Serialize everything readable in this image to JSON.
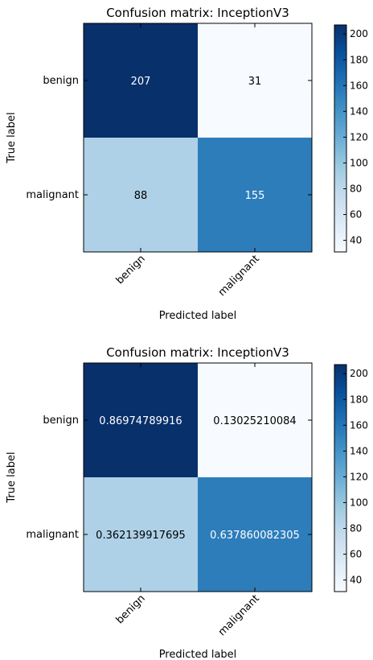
{
  "chart_data": [
    {
      "type": "heatmap",
      "title": "Confusion matrix: InceptionV3",
      "xlabel": "Predicted label",
      "ylabel": "True label",
      "x_categories": [
        "benign",
        "malignant"
      ],
      "y_categories": [
        "benign",
        "malignant"
      ],
      "values": [
        [
          207,
          31
        ],
        [
          88,
          155
        ]
      ],
      "labels": [
        [
          "207",
          "31"
        ],
        [
          "88",
          "155"
        ]
      ],
      "colorbar": {
        "min": 31,
        "max": 207,
        "ticks": [
          40,
          60,
          80,
          100,
          120,
          140,
          160,
          180,
          200
        ],
        "colormap": "Blues"
      }
    },
    {
      "type": "heatmap",
      "title": "Confusion matrix: InceptionV3",
      "xlabel": "Predicted label",
      "ylabel": "True label",
      "x_categories": [
        "benign",
        "malignant"
      ],
      "y_categories": [
        "benign",
        "malignant"
      ],
      "values": [
        [
          0.86974789916,
          0.13025210084
        ],
        [
          0.362139917695,
          0.637860082305
        ]
      ],
      "labels": [
        [
          "0.86974789916",
          "0.13025210084"
        ],
        [
          "0.362139917695",
          "0.637860082305"
        ]
      ],
      "color_values": [
        [
          207,
          31
        ],
        [
          88,
          155
        ]
      ],
      "colorbar": {
        "min": 31,
        "max": 207,
        "ticks": [
          40,
          60,
          80,
          100,
          120,
          140,
          160,
          180,
          200
        ],
        "colormap": "Blues"
      }
    }
  ]
}
